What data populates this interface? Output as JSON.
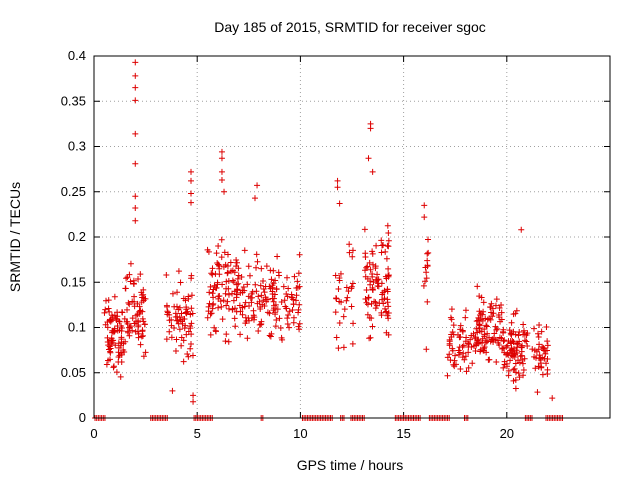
{
  "chart_data": {
    "type": "scatter",
    "title": "Day 185 of 2015, SRMTID for receiver sgoc",
    "xlabel": "GPS time / hours",
    "ylabel": "SRMTID / TECUs",
    "xlim": [
      0,
      25
    ],
    "ylim": [
      0,
      0.4
    ],
    "x_ticks": [
      0,
      5,
      10,
      15,
      20
    ],
    "x_tick_labels": [
      "0",
      "5",
      "10",
      "15",
      "20"
    ],
    "y_ticks": [
      0,
      0.05,
      0.1,
      0.15,
      0.2,
      0.25,
      0.3,
      0.35,
      0.4
    ],
    "y_tick_labels": [
      "0",
      "0.05",
      "0.1",
      "0.15",
      "0.2",
      "0.25",
      "0.3",
      "0.35",
      "0.4"
    ],
    "grid": true,
    "marker": "+",
    "color": "#dd0000",
    "series": [
      {
        "name": "SRMTID",
        "clusters": [
          {
            "x_start": 0.5,
            "x_end": 1.5,
            "y_center": 0.09,
            "spread": 0.03,
            "count": 80,
            "y_min": 0.04,
            "y_max": 0.17
          },
          {
            "x_start": 1.5,
            "x_end": 2.5,
            "y_center": 0.12,
            "spread": 0.035,
            "count": 70,
            "y_min": 0.04,
            "y_max": 0.18
          },
          {
            "x_start": 3.5,
            "x_end": 4.8,
            "y_center": 0.11,
            "spread": 0.035,
            "count": 70,
            "y_min": 0.05,
            "y_max": 0.21
          },
          {
            "x_start": 5.5,
            "x_end": 7.5,
            "y_center": 0.14,
            "spread": 0.04,
            "count": 120,
            "y_min": 0.04,
            "y_max": 0.22
          },
          {
            "x_start": 7.5,
            "x_end": 10.0,
            "y_center": 0.13,
            "spread": 0.035,
            "count": 120,
            "y_min": 0.05,
            "y_max": 0.21
          },
          {
            "x_start": 11.7,
            "x_end": 12.6,
            "y_center": 0.14,
            "spread": 0.045,
            "count": 30,
            "y_min": 0.06,
            "y_max": 0.26
          },
          {
            "x_start": 13.1,
            "x_end": 14.3,
            "y_center": 0.15,
            "spread": 0.045,
            "count": 90,
            "y_min": 0.06,
            "y_max": 0.27
          },
          {
            "x_start": 15.9,
            "x_end": 16.2,
            "y_center": 0.17,
            "spread": 0.03,
            "count": 12,
            "y_min": 0.075,
            "y_max": 0.24
          },
          {
            "x_start": 17.1,
            "x_end": 18.5,
            "y_center": 0.085,
            "spread": 0.025,
            "count": 60,
            "y_min": 0.04,
            "y_max": 0.13
          },
          {
            "x_start": 18.5,
            "x_end": 19.8,
            "y_center": 0.1,
            "spread": 0.03,
            "count": 90,
            "y_min": 0.05,
            "y_max": 0.19
          },
          {
            "x_start": 19.8,
            "x_end": 21.0,
            "y_center": 0.075,
            "spread": 0.03,
            "count": 90,
            "y_min": 0.02,
            "y_max": 0.21
          },
          {
            "x_start": 21.2,
            "x_end": 22.0,
            "y_center": 0.07,
            "spread": 0.025,
            "count": 40,
            "y_min": 0.02,
            "y_max": 0.14
          }
        ],
        "outliers": [
          [
            2.0,
            0.393
          ],
          [
            2.0,
            0.378
          ],
          [
            2.0,
            0.365
          ],
          [
            2.0,
            0.351
          ],
          [
            2.0,
            0.314
          ],
          [
            2.0,
            0.281
          ],
          [
            2.0,
            0.245
          ],
          [
            2.0,
            0.232
          ],
          [
            2.0,
            0.218
          ],
          [
            4.7,
            0.272
          ],
          [
            4.7,
            0.262
          ],
          [
            4.7,
            0.248
          ],
          [
            4.7,
            0.238
          ],
          [
            4.8,
            0.025
          ],
          [
            4.8,
            0.018
          ],
          [
            3.8,
            0.03
          ],
          [
            6.2,
            0.294
          ],
          [
            6.2,
            0.287
          ],
          [
            6.2,
            0.272
          ],
          [
            6.2,
            0.263
          ],
          [
            6.3,
            0.25
          ],
          [
            7.9,
            0.257
          ],
          [
            7.8,
            0.243
          ],
          [
            11.8,
            0.262
          ],
          [
            11.8,
            0.255
          ],
          [
            11.9,
            0.237
          ],
          [
            13.4,
            0.325
          ],
          [
            13.4,
            0.32
          ],
          [
            13.3,
            0.287
          ],
          [
            13.5,
            0.272
          ],
          [
            16.0,
            0.235
          ],
          [
            16.0,
            0.222
          ],
          [
            16.1,
            0.076
          ],
          [
            20.7,
            0.208
          ],
          [
            22.2,
            0.022
          ]
        ],
        "zero_bands": [
          [
            0.05,
            0.55
          ],
          [
            2.75,
            3.6
          ],
          [
            4.85,
            5.75
          ],
          [
            8.1,
            8.25
          ],
          [
            10.1,
            11.55
          ],
          [
            11.95,
            12.15
          ],
          [
            12.45,
            13.15
          ],
          [
            14.6,
            15.85
          ],
          [
            16.25,
            17.25
          ],
          [
            17.95,
            18.15
          ],
          [
            20.9,
            21.25
          ],
          [
            21.9,
            22.75
          ]
        ]
      }
    ]
  }
}
